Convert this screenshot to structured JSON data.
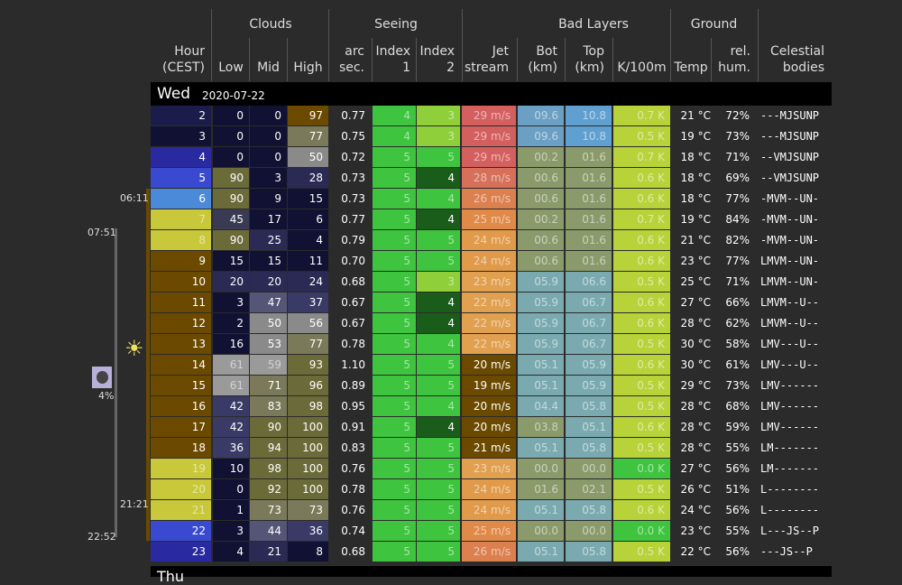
{
  "headers": {
    "hour": "Hour",
    "hour_tz": "(CEST)",
    "groups": {
      "clouds": "Clouds",
      "seeing": "Seeing",
      "bad_layers": "Bad Layers",
      "ground": "Ground"
    },
    "clouds": {
      "low": "Low",
      "mid": "Mid",
      "high": "High"
    },
    "seeing": {
      "arc1": "arc",
      "arc2": "sec.",
      "idx1a": "Index",
      "idx1b": "1",
      "idx2a": "Index",
      "idx2b": "2",
      "jet1": "Jet",
      "jet2": "stream"
    },
    "bad": {
      "bot1": "Bot",
      "bot2": "(km)",
      "top1": "Top",
      "top2": "(km)",
      "k": "K/100m"
    },
    "ground": {
      "temp": "Temp",
      "rh1": "rel.",
      "rh2": "hum."
    },
    "celestial1": "Celestial",
    "celestial2": "bodies"
  },
  "day": {
    "name": "Wed",
    "date": "2020-07-22"
  },
  "next_day": "Thu",
  "side": {
    "t1": "06:11",
    "t2": "07:51",
    "t3": "21:21",
    "t4": "22:52",
    "moon_pct": "4%"
  },
  "rows": [
    {
      "hour": "2",
      "hour_bg": "#1c1c4a",
      "low": "0",
      "low_bg": "#111133",
      "mid": "0",
      "mid_bg": "#111133",
      "high": "97",
      "high_bg": "#6b4a00",
      "arc": "0.77",
      "i1": "4",
      "i1_bg": "#3ec43e",
      "i2": "3",
      "i2_bg": "#8fcf3a",
      "jet": "29 m/s",
      "jet_bg": "#d45f5f",
      "bot": "09.6",
      "bot_bg": "#6ba0c4",
      "top": "10.8",
      "top_bg": "#5fa0d0",
      "k": "0.7 K",
      "k_bg": "#b8d23a",
      "temp": "21 °C",
      "rh": "72%",
      "cel": "---MJSUNP"
    },
    {
      "hour": "3",
      "hour_bg": "#111133",
      "low": "0",
      "low_bg": "#111133",
      "mid": "0",
      "mid_bg": "#111133",
      "high": "77",
      "high_bg": "#7a7a5a",
      "arc": "0.75",
      "i1": "4",
      "i1_bg": "#3ec43e",
      "i2": "3",
      "i2_bg": "#8fcf3a",
      "jet": "29 m/s",
      "jet_bg": "#d45f5f",
      "bot": "09.6",
      "bot_bg": "#6ba0c4",
      "top": "10.8",
      "top_bg": "#5fa0d0",
      "k": "0.5 K",
      "k_bg": "#b8d23a",
      "temp": "19 °C",
      "rh": "73%",
      "cel": "---MJSUNP"
    },
    {
      "hour": "4",
      "hour_bg": "#2a2aa0",
      "low": "0",
      "low_bg": "#111133",
      "mid": "0",
      "mid_bg": "#111133",
      "high": "50",
      "high_bg": "#8a8a8a",
      "arc": "0.72",
      "i1": "5",
      "i1_bg": "#3ec43e",
      "i2": "5",
      "i2_bg": "#3ec43e",
      "jet": "29 m/s",
      "jet_bg": "#d45f5f",
      "bot": "00.2",
      "bot_bg": "#8a9a6a",
      "top": "01.6",
      "top_bg": "#8a9a6a",
      "k": "0.7 K",
      "k_bg": "#b8d23a",
      "temp": "18 °C",
      "rh": "71%",
      "cel": "--VMJSUNP"
    },
    {
      "hour": "5",
      "hour_bg": "#3a4ad0",
      "low": "90",
      "low_bg": "#6b6b3a",
      "mid": "3",
      "mid_bg": "#111133",
      "high": "28",
      "high_bg": "#2a2a55",
      "arc": "0.73",
      "i1": "5",
      "i1_bg": "#3ec43e",
      "i2": "4",
      "i2_bg": "#1a5c1a",
      "jet": "28 m/s",
      "jet_bg": "#d6705a",
      "bot": "00.6",
      "bot_bg": "#8a9a6a",
      "top": "01.6",
      "top_bg": "#8a9a6a",
      "k": "0.6 K",
      "k_bg": "#b8d23a",
      "temp": "18 °C",
      "rh": "69%",
      "cel": "--VMJSUNP"
    },
    {
      "hour": "6",
      "hour_bg": "#4a8ad8",
      "low": "90",
      "low_bg": "#6b6b3a",
      "mid": "9",
      "mid_bg": "#111133",
      "high": "15",
      "high_bg": "#111133",
      "arc": "0.73",
      "i1": "5",
      "i1_bg": "#3ec43e",
      "i2": "4",
      "i2_bg": "#3ec43e",
      "jet": "26 m/s",
      "jet_bg": "#dc8050",
      "bot": "00.6",
      "bot_bg": "#8a9a6a",
      "top": "01.6",
      "top_bg": "#8a9a6a",
      "k": "0.6 K",
      "k_bg": "#b8d23a",
      "temp": "18 °C",
      "rh": "77%",
      "cel": "-MVM--UN-"
    },
    {
      "hour": "7",
      "hour_bg": "#c8c83a",
      "low": "45",
      "low_bg": "#3a3a55",
      "mid": "17",
      "mid_bg": "#111133",
      "high": "6",
      "high_bg": "#111133",
      "arc": "0.77",
      "i1": "5",
      "i1_bg": "#3ec43e",
      "i2": "4",
      "i2_bg": "#1a5c1a",
      "jet": "25 m/s",
      "jet_bg": "#e08a4a",
      "bot": "00.2",
      "bot_bg": "#8a9a6a",
      "top": "01.6",
      "top_bg": "#8a9a6a",
      "k": "0.7 K",
      "k_bg": "#b8d23a",
      "temp": "19 °C",
      "rh": "84%",
      "cel": "-MVM--UN-"
    },
    {
      "hour": "8",
      "hour_bg": "#c8c83a",
      "low": "90",
      "low_bg": "#6b6b3a",
      "mid": "25",
      "mid_bg": "#2a2a55",
      "high": "4",
      "high_bg": "#111133",
      "arc": "0.79",
      "i1": "5",
      "i1_bg": "#3ec43e",
      "i2": "5",
      "i2_bg": "#3ec43e",
      "jet": "24 m/s",
      "jet_bg": "#e09a4a",
      "bot": "00.6",
      "bot_bg": "#8a9a6a",
      "top": "01.6",
      "top_bg": "#8a9a6a",
      "k": "0.6 K",
      "k_bg": "#b8d23a",
      "temp": "21 °C",
      "rh": "82%",
      "cel": "-MVM--UN-"
    },
    {
      "hour": "9",
      "hour_bg": "#6b4a00",
      "low": "15",
      "low_bg": "#111133",
      "mid": "15",
      "mid_bg": "#111133",
      "high": "11",
      "high_bg": "#111133",
      "arc": "0.70",
      "i1": "5",
      "i1_bg": "#3ec43e",
      "i2": "5",
      "i2_bg": "#3ec43e",
      "jet": "24 m/s",
      "jet_bg": "#e09a4a",
      "bot": "00.6",
      "bot_bg": "#8a9a6a",
      "top": "01.6",
      "top_bg": "#8a9a6a",
      "k": "0.6 K",
      "k_bg": "#b8d23a",
      "temp": "23 °C",
      "rh": "77%",
      "cel": "LMVM--UN-"
    },
    {
      "hour": "10",
      "hour_bg": "#6b4a00",
      "low": "20",
      "low_bg": "#2a2a55",
      "mid": "20",
      "mid_bg": "#2a2a55",
      "high": "24",
      "high_bg": "#2a2a55",
      "arc": "0.68",
      "i1": "5",
      "i1_bg": "#3ec43e",
      "i2": "3",
      "i2_bg": "#8fcf3a",
      "jet": "23 m/s",
      "jet_bg": "#e0a050",
      "bot": "05.9",
      "bot_bg": "#7aaab0",
      "top": "06.6",
      "top_bg": "#7aaab0",
      "k": "0.5 K",
      "k_bg": "#b8d23a",
      "temp": "25 °C",
      "rh": "71%",
      "cel": "LMVM--UN-"
    },
    {
      "hour": "11",
      "hour_bg": "#6b4a00",
      "low": "3",
      "low_bg": "#111133",
      "mid": "47",
      "mid_bg": "#555577",
      "high": "37",
      "high_bg": "#3a3a66",
      "arc": "0.67",
      "i1": "5",
      "i1_bg": "#3ec43e",
      "i2": "4",
      "i2_bg": "#1a5c1a",
      "jet": "22 m/s",
      "jet_bg": "#e0a050",
      "bot": "05.9",
      "bot_bg": "#7aaab0",
      "top": "06.7",
      "top_bg": "#7aaab0",
      "k": "0.6 K",
      "k_bg": "#b8d23a",
      "temp": "27 °C",
      "rh": "66%",
      "cel": "LMVM--U--"
    },
    {
      "hour": "12",
      "hour_bg": "#6b4a00",
      "low": "2",
      "low_bg": "#111133",
      "mid": "50",
      "mid_bg": "#8a8a8a",
      "high": "56",
      "high_bg": "#8a8a8a",
      "arc": "0.67",
      "i1": "5",
      "i1_bg": "#3ec43e",
      "i2": "4",
      "i2_bg": "#1a5c1a",
      "jet": "22 m/s",
      "jet_bg": "#e0a050",
      "bot": "05.9",
      "bot_bg": "#7aaab0",
      "top": "06.7",
      "top_bg": "#7aaab0",
      "k": "0.6 K",
      "k_bg": "#b8d23a",
      "temp": "28 °C",
      "rh": "62%",
      "cel": "LMVM--U--"
    },
    {
      "hour": "13",
      "hour_bg": "#6b4a00",
      "low": "16",
      "low_bg": "#111133",
      "mid": "53",
      "mid_bg": "#8a8a8a",
      "high": "77",
      "high_bg": "#7a7a5a",
      "arc": "0.78",
      "i1": "5",
      "i1_bg": "#3ec43e",
      "i2": "4",
      "i2_bg": "#3ec43e",
      "jet": "22 m/s",
      "jet_bg": "#e0a050",
      "bot": "05.9",
      "bot_bg": "#7aaab0",
      "top": "06.7",
      "top_bg": "#7aaab0",
      "k": "0.5 K",
      "k_bg": "#b8d23a",
      "temp": "30 °C",
      "rh": "58%",
      "cel": "LMV---U--"
    },
    {
      "hour": "14",
      "hour_bg": "#6b4a00",
      "low": "61",
      "low_bg": "#9a9a9a",
      "mid": "59",
      "mid_bg": "#9a9a9a",
      "high": "93",
      "high_bg": "#6b6b3a",
      "arc": "1.10",
      "i1": "5",
      "i1_bg": "#3ec43e",
      "i2": "5",
      "i2_bg": "#3ec43e",
      "jet": "20 m/s",
      "jet_bg": "#6b4a00",
      "bot": "05.1",
      "bot_bg": "#7aaab0",
      "top": "05.9",
      "top_bg": "#7aaab0",
      "k": "0.6 K",
      "k_bg": "#b8d23a",
      "temp": "30 °C",
      "rh": "61%",
      "cel": "LMV---U--"
    },
    {
      "hour": "15",
      "hour_bg": "#6b4a00",
      "low": "61",
      "low_bg": "#9a9a9a",
      "mid": "71",
      "mid_bg": "#7a7a5a",
      "high": "96",
      "high_bg": "#6b6b3a",
      "arc": "0.89",
      "i1": "5",
      "i1_bg": "#3ec43e",
      "i2": "5",
      "i2_bg": "#3ec43e",
      "jet": "19 m/s",
      "jet_bg": "#6b4a00",
      "bot": "05.1",
      "bot_bg": "#7aaab0",
      "top": "05.9",
      "top_bg": "#7aaab0",
      "k": "0.5 K",
      "k_bg": "#b8d23a",
      "temp": "29 °C",
      "rh": "73%",
      "cel": "LMV------"
    },
    {
      "hour": "16",
      "hour_bg": "#6b4a00",
      "low": "42",
      "low_bg": "#3a3a66",
      "mid": "83",
      "mid_bg": "#7a7a5a",
      "high": "98",
      "high_bg": "#6b6b3a",
      "arc": "0.95",
      "i1": "5",
      "i1_bg": "#3ec43e",
      "i2": "4",
      "i2_bg": "#3ec43e",
      "jet": "20 m/s",
      "jet_bg": "#6b4a00",
      "bot": "04.4",
      "bot_bg": "#7aaab0",
      "top": "05.8",
      "top_bg": "#7aaab0",
      "k": "0.5 K",
      "k_bg": "#b8d23a",
      "temp": "28 °C",
      "rh": "68%",
      "cel": "LMV------"
    },
    {
      "hour": "17",
      "hour_bg": "#6b4a00",
      "low": "42",
      "low_bg": "#3a3a66",
      "mid": "90",
      "mid_bg": "#6b6b3a",
      "high": "100",
      "high_bg": "#6b6b3a",
      "arc": "0.91",
      "i1": "5",
      "i1_bg": "#3ec43e",
      "i2": "4",
      "i2_bg": "#1a5c1a",
      "jet": "20 m/s",
      "jet_bg": "#6b4a00",
      "bot": "03.8",
      "bot_bg": "#8a9a6a",
      "top": "05.1",
      "top_bg": "#7aaab0",
      "k": "0.6 K",
      "k_bg": "#b8d23a",
      "temp": "28 °C",
      "rh": "59%",
      "cel": "LMV------"
    },
    {
      "hour": "18",
      "hour_bg": "#6b4a00",
      "low": "36",
      "low_bg": "#3a3a66",
      "mid": "94",
      "mid_bg": "#6b6b3a",
      "high": "100",
      "high_bg": "#6b6b3a",
      "arc": "0.83",
      "i1": "5",
      "i1_bg": "#3ec43e",
      "i2": "5",
      "i2_bg": "#3ec43e",
      "jet": "21 m/s",
      "jet_bg": "#6b4a00",
      "bot": "05.1",
      "bot_bg": "#7aaab0",
      "top": "05.8",
      "top_bg": "#7aaab0",
      "k": "0.5 K",
      "k_bg": "#b8d23a",
      "temp": "28 °C",
      "rh": "55%",
      "cel": "LM-------"
    },
    {
      "hour": "19",
      "hour_bg": "#c8c83a",
      "low": "10",
      "low_bg": "#111133",
      "mid": "98",
      "mid_bg": "#6b6b3a",
      "high": "100",
      "high_bg": "#6b6b3a",
      "arc": "0.76",
      "i1": "5",
      "i1_bg": "#3ec43e",
      "i2": "5",
      "i2_bg": "#3ec43e",
      "jet": "23 m/s",
      "jet_bg": "#e0a050",
      "bot": "00.0",
      "bot_bg": "#8a9a6a",
      "top": "00.0",
      "top_bg": "#8a9a6a",
      "k": "0.0 K",
      "k_bg": "#3ec43e",
      "temp": "27 °C",
      "rh": "56%",
      "cel": "LM-------"
    },
    {
      "hour": "20",
      "hour_bg": "#c8c83a",
      "low": "0",
      "low_bg": "#111133",
      "mid": "92",
      "mid_bg": "#6b6b3a",
      "high": "100",
      "high_bg": "#6b6b3a",
      "arc": "0.78",
      "i1": "5",
      "i1_bg": "#3ec43e",
      "i2": "5",
      "i2_bg": "#3ec43e",
      "jet": "24 m/s",
      "jet_bg": "#e09a4a",
      "bot": "01.6",
      "bot_bg": "#8a9a6a",
      "top": "02.1",
      "top_bg": "#8a9a6a",
      "k": "0.5 K",
      "k_bg": "#b8d23a",
      "temp": "26 °C",
      "rh": "51%",
      "cel": "L--------"
    },
    {
      "hour": "21",
      "hour_bg": "#c8c83a",
      "low": "1",
      "low_bg": "#111133",
      "mid": "73",
      "mid_bg": "#7a7a5a",
      "high": "73",
      "high_bg": "#7a7a5a",
      "arc": "0.76",
      "i1": "5",
      "i1_bg": "#3ec43e",
      "i2": "5",
      "i2_bg": "#3ec43e",
      "jet": "24 m/s",
      "jet_bg": "#e09a4a",
      "bot": "05.1",
      "bot_bg": "#7aaab0",
      "top": "05.8",
      "top_bg": "#7aaab0",
      "k": "0.6 K",
      "k_bg": "#b8d23a",
      "temp": "24 °C",
      "rh": "56%",
      "cel": "L--------"
    },
    {
      "hour": "22",
      "hour_bg": "#3a4ad0",
      "low": "3",
      "low_bg": "#111133",
      "mid": "44",
      "mid_bg": "#555577",
      "high": "36",
      "high_bg": "#3a3a66",
      "arc": "0.74",
      "i1": "5",
      "i1_bg": "#3ec43e",
      "i2": "5",
      "i2_bg": "#3ec43e",
      "jet": "25 m/s",
      "jet_bg": "#e08a4a",
      "bot": "00.0",
      "bot_bg": "#8a9a6a",
      "top": "00.0",
      "top_bg": "#8a9a6a",
      "k": "0.0 K",
      "k_bg": "#3ec43e",
      "temp": "23 °C",
      "rh": "55%",
      "cel": "L---JS--P"
    },
    {
      "hour": "23",
      "hour_bg": "#2a2aa0",
      "low": "4",
      "low_bg": "#111133",
      "mid": "21",
      "mid_bg": "#2a2a55",
      "high": "8",
      "high_bg": "#111133",
      "arc": "0.68",
      "i1": "5",
      "i1_bg": "#3ec43e",
      "i2": "5",
      "i2_bg": "#3ec43e",
      "jet": "26 m/s",
      "jet_bg": "#dc8050",
      "bot": "05.1",
      "bot_bg": "#7aaab0",
      "top": "05.8",
      "top_bg": "#7aaab0",
      "k": "0.5 K",
      "k_bg": "#b8d23a",
      "temp": "22 °C",
      "rh": "56%",
      "cel": "---JS--P"
    }
  ]
}
